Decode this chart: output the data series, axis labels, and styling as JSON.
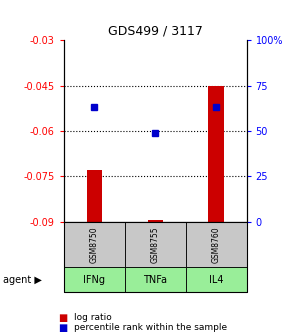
{
  "title": "GDS499 / 3117",
  "samples": [
    "GSM8750",
    "GSM8755",
    "GSM8760"
  ],
  "agents": [
    "IFNg",
    "TNFa",
    "IL4"
  ],
  "log_ratios": [
    -0.073,
    -0.0895,
    -0.045
  ],
  "percentile_ranks": [
    0.63,
    0.49,
    0.63
  ],
  "ylim_left": [
    -0.09,
    -0.03
  ],
  "ylim_right": [
    0,
    1.0
  ],
  "yticks_left": [
    -0.09,
    -0.075,
    -0.06,
    -0.045,
    -0.03
  ],
  "yticks_right": [
    0,
    0.25,
    0.5,
    0.75,
    1.0
  ],
  "ytick_labels_right": [
    "0",
    "25",
    "50",
    "75",
    "100%"
  ],
  "bar_color": "#cc0000",
  "dot_color": "#0000cc",
  "gray_box_color": "#c8c8c8",
  "green_box_color": "#99ee99",
  "agent_label": "agent",
  "legend_log_ratio": "log ratio",
  "legend_percentile": "percentile rank within the sample",
  "bar_width": 0.25,
  "fig_width": 2.9,
  "fig_height": 3.36,
  "dpi": 100
}
